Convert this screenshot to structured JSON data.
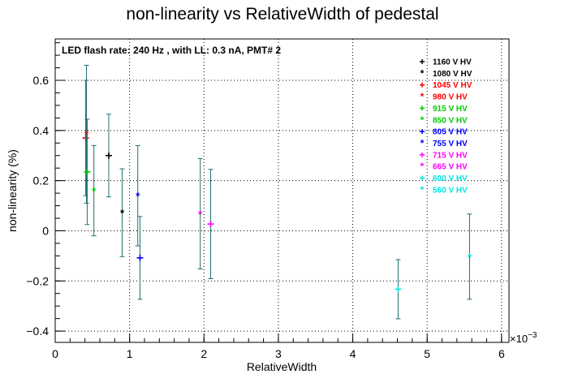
{
  "chart_data": {
    "type": "scatter",
    "title": "non-linearity vs RelativeWidth of pedestal",
    "annotation": "LED flash rate: 240 Hz , with LL: 0.3 nA, PMT# 2",
    "xlabel": "RelativeWidth",
    "ylabel": "non-linearity (%)",
    "x_multiplier_label": "×10",
    "x_multiplier_exp": "−3",
    "xlim": [
      0,
      0.0061
    ],
    "ylim": [
      -0.445,
      0.765
    ],
    "x_ticks": [
      0,
      0.001,
      0.002,
      0.003,
      0.004,
      0.005,
      0.006
    ],
    "x_tick_labels": [
      "0",
      "1",
      "2",
      "3",
      "4",
      "5",
      "6"
    ],
    "y_ticks": [
      -0.4,
      -0.2,
      0,
      0.2,
      0.4,
      0.6
    ],
    "y_tick_labels": [
      "−0.4",
      "−0.2",
      "0",
      "0.2",
      "0.4",
      "0.6"
    ],
    "grid": true,
    "legend_position": "top-right",
    "error_bar_color": "#1f6f6f",
    "series": [
      {
        "name": "1160 V HV",
        "color": "#000000",
        "marker": "+",
        "x": 0.00072,
        "y": 0.3,
        "yerr": 0.165
      },
      {
        "name": "1080 V HV",
        "color": "#000000",
        "marker": "*",
        "x": 0.0009,
        "y": 0.072,
        "yerr": 0.175
      },
      {
        "name": "1045 V HV",
        "color": "#ff0000",
        "marker": "+",
        "x": 0.00041,
        "y": 0.37,
        "yerr": 0.23
      },
      {
        "name": "980 V HV",
        "color": "#ff0000",
        "marker": "*",
        "x": 0.00042,
        "y": 0.385,
        "yerr": 0.275
      },
      {
        "name": "915 V HV",
        "color": "#00cc00",
        "marker": "+",
        "x": 0.00043,
        "y": 0.235,
        "yerr": 0.21
      },
      {
        "name": "850 V HV",
        "color": "#00cc00",
        "marker": "*",
        "x": 0.00052,
        "y": 0.16,
        "yerr": 0.18
      },
      {
        "name": "805 V HV",
        "color": "#0000ff",
        "marker": "+",
        "x": 0.00114,
        "y": -0.108,
        "yerr": 0.165
      },
      {
        "name": "755 V HV",
        "color": "#0000ff",
        "marker": "*",
        "x": 0.00111,
        "y": 0.14,
        "yerr": 0.2
      },
      {
        "name": "715 V HV",
        "color": "#ff00ff",
        "marker": "+",
        "x": 0.00209,
        "y": 0.027,
        "yerr": 0.218
      },
      {
        "name": "665 V HV",
        "color": "#ff00ff",
        "marker": "*",
        "x": 0.00195,
        "y": 0.068,
        "yerr": 0.22
      },
      {
        "name": "600 V HV",
        "color": "#00e5e5",
        "marker": "+",
        "x": 0.00461,
        "y": -0.233,
        "yerr": 0.118
      },
      {
        "name": "560 V HV",
        "color": "#00e5e5",
        "marker": "*",
        "x": 0.00557,
        "y": -0.103,
        "yerr": 0.17
      }
    ]
  }
}
